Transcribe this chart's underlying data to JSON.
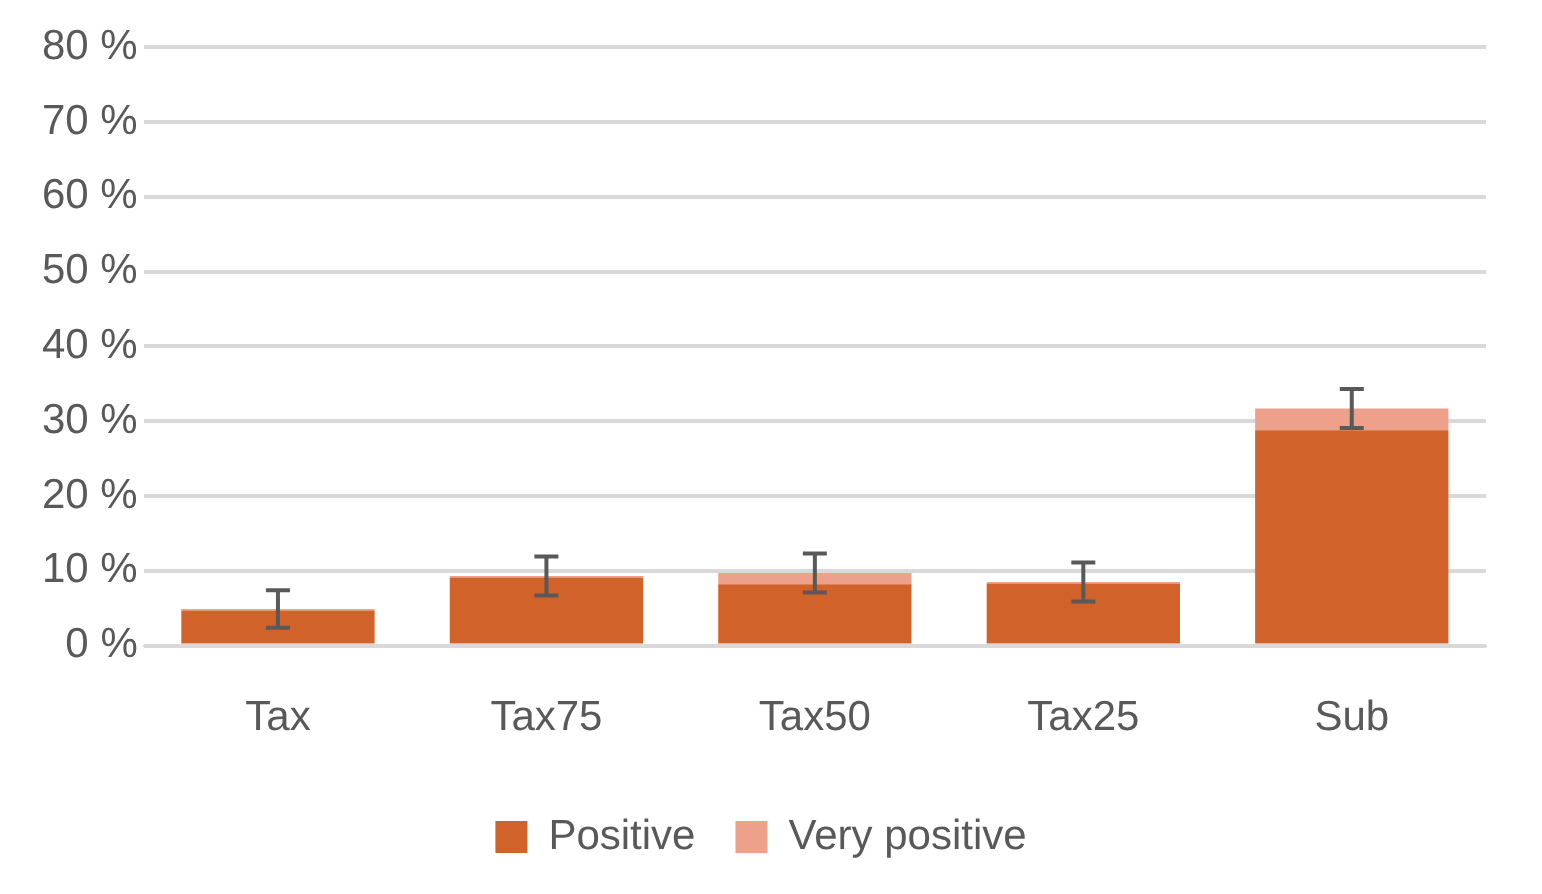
{
  "chart_data": {
    "type": "bar",
    "stacked": true,
    "categories": [
      "Tax",
      "Tax75",
      "Tax50",
      "Tax25",
      "Sub"
    ],
    "series": [
      {
        "name": "Positive",
        "color": "#d0622a",
        "values": [
          4.7,
          9.1,
          8.2,
          8.3,
          28.8
        ]
      },
      {
        "name": "Very positive",
        "color": "#eda08a",
        "values": [
          0.2,
          0.2,
          1.5,
          0.2,
          2.9
        ],
        "errors": [
          2.5,
          2.6,
          2.6,
          2.6,
          2.6
        ]
      }
    ],
    "ylim": [
      0,
      80
    ],
    "yticks": [
      {
        "value": 0,
        "label": "0 %"
      },
      {
        "value": 10,
        "label": "10 %"
      },
      {
        "value": 20,
        "label": "20 %"
      },
      {
        "value": 30,
        "label": "30 %"
      },
      {
        "value": 40,
        "label": "40 %"
      },
      {
        "value": 50,
        "label": "50 %"
      },
      {
        "value": 60,
        "label": "60 %"
      },
      {
        "value": 70,
        "label": "70 %"
      },
      {
        "value": 80,
        "label": "80 %"
      }
    ],
    "grid": "y",
    "legend": "bottom"
  }
}
